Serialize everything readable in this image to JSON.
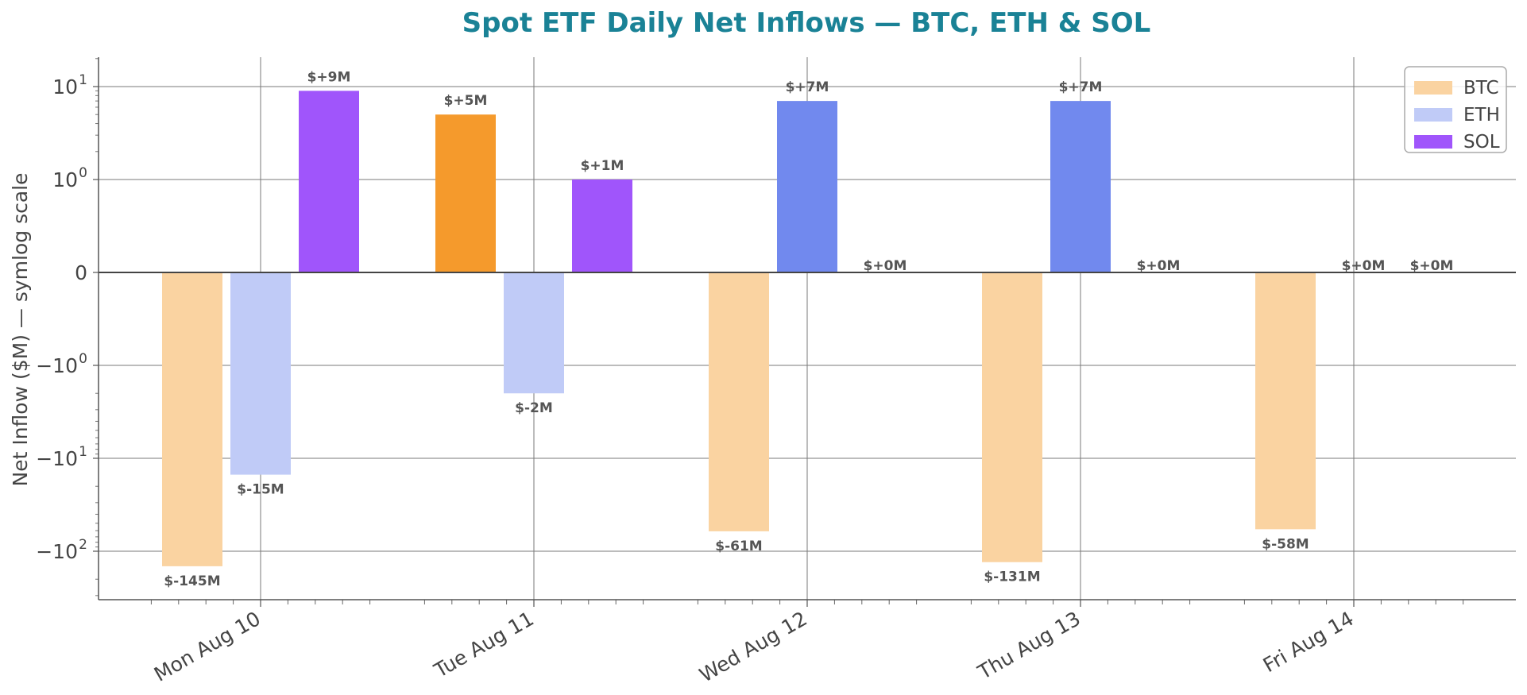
{
  "chart_data": {
    "type": "bar",
    "title": "Spot ETF Daily Net Inflows — BTC, ETH & SOL",
    "ylabel": "Net Inflow ($M) — symlog scale",
    "xlabel": "",
    "y_scale": "symlog",
    "y_linthresh": 1,
    "ylim": [
      -240,
      15
    ],
    "y_ticks": [
      {
        "value": 10,
        "base": "10",
        "exp": "1"
      },
      {
        "value": 1,
        "base": "10",
        "exp": "0"
      },
      {
        "value": 0,
        "base": "0",
        "exp": ""
      },
      {
        "value": -1,
        "base": "−10",
        "exp": "0"
      },
      {
        "value": -10,
        "base": "−10",
        "exp": "1"
      },
      {
        "value": -100,
        "base": "−10",
        "exp": "2"
      }
    ],
    "categories": [
      "Mon Aug 10",
      "Tue Aug 11",
      "Wed Aug 12",
      "Thu Aug 13",
      "Fri Aug 14"
    ],
    "series": [
      {
        "name": "BTC",
        "color": "#F59A2C",
        "light": "#FAD3A1",
        "values": [
          -145,
          5,
          -61,
          -131,
          -58
        ],
        "labels": [
          "$-145M",
          "$+5M",
          "$-61M",
          "$-131M",
          "$-58M"
        ]
      },
      {
        "name": "ETH",
        "color": "#7189EE",
        "light": "#C0CBF7",
        "values": [
          -15,
          -2,
          7,
          7,
          0
        ],
        "labels": [
          "$-15M",
          "$-2M",
          "$+7M",
          "$+7M",
          "$+0M"
        ]
      },
      {
        "name": "SOL",
        "color": "#A055FB",
        "light": "#A055FB",
        "values": [
          9,
          1,
          0,
          0,
          0
        ],
        "labels": [
          "$+9M",
          "$+1M",
          "$+0M",
          "$+0M",
          "$+0M"
        ]
      }
    ],
    "legend": {
      "placement": "top-right",
      "entries": [
        "BTC",
        "ETH",
        "SOL"
      ]
    },
    "grid": true,
    "title_color": "#1A8296"
  }
}
